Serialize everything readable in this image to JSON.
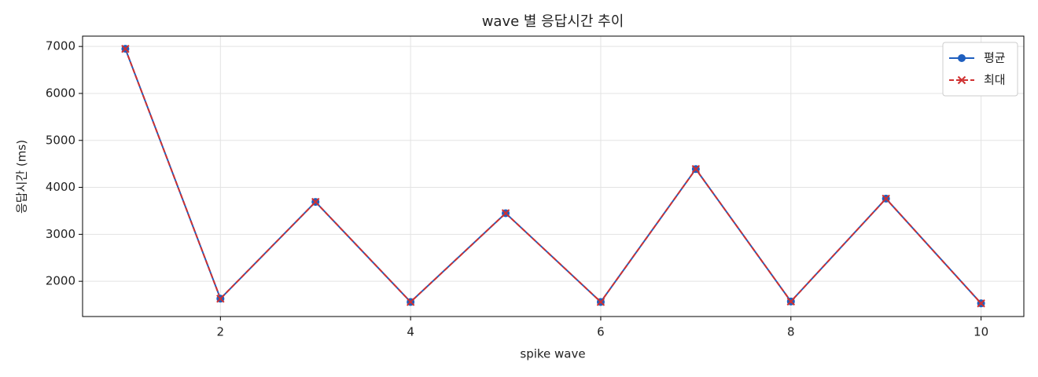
{
  "chart_data": {
    "type": "line",
    "title": "wave 별 응답시간 추이",
    "xlabel": "spike wave",
    "ylabel": "응답시간 (ms)",
    "x": [
      1,
      2,
      3,
      4,
      5,
      6,
      7,
      8,
      9,
      10
    ],
    "series": [
      {
        "name": "평균",
        "color": "#1f5fbf",
        "linestyle": "solid",
        "marker": "circle",
        "values": [
          6950,
          1630,
          3690,
          1560,
          3450,
          1560,
          4390,
          1570,
          3760,
          1530
        ]
      },
      {
        "name": "최대",
        "color": "#d03030",
        "linestyle": "dashed",
        "marker": "x",
        "values": [
          6950,
          1630,
          3690,
          1560,
          3450,
          1560,
          4390,
          1570,
          3760,
          1530
        ]
      }
    ],
    "xlim": [
      0.55,
      10.45
    ],
    "xticks": [
      2,
      4,
      6,
      8,
      10
    ],
    "ylim": [
      1250,
      7220
    ],
    "yticks": [
      2000,
      3000,
      4000,
      5000,
      6000,
      7000
    ],
    "grid": true,
    "legend": "upper right"
  }
}
